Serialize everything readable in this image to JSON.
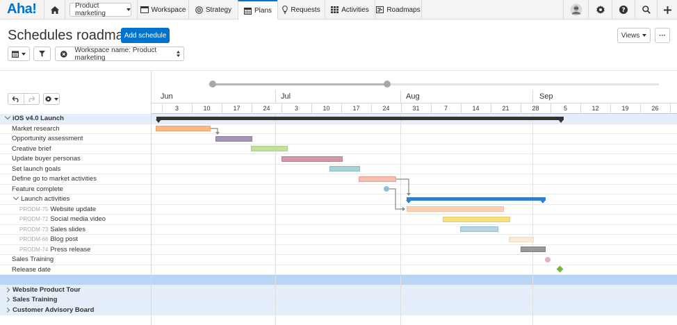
{
  "app": {
    "logo": "Aha!",
    "workspace_select": "Product marketing",
    "nav": [
      {
        "label": "Workspace",
        "icon": "workspace-icon"
      },
      {
        "label": "Strategy",
        "icon": "strategy-icon"
      },
      {
        "label": "Plans",
        "icon": "plans-icon",
        "active": true
      },
      {
        "label": "Requests",
        "icon": "lightbulb-icon"
      },
      {
        "label": "Activities",
        "icon": "grid-icon"
      },
      {
        "label": "Roadmaps",
        "icon": "roadmap-icon"
      }
    ]
  },
  "header": {
    "title": "Schedules roadmap",
    "add_button": "Add schedule",
    "views_button": "Views",
    "more_button": "···",
    "filter_label": "Workspace name: Product marketing"
  },
  "timeline": {
    "months": [
      "Jun",
      "Jul",
      "Aug",
      "Sep"
    ],
    "weeks": [
      "3",
      "10",
      "17",
      "24",
      "3",
      "10",
      "17",
      "24",
      "31",
      "7",
      "14",
      "21",
      "28",
      "5",
      "12",
      "19",
      "26"
    ]
  },
  "rows": [
    {
      "type": "group-open",
      "label": "iOS v4.0 Launch"
    },
    {
      "type": "item",
      "label": "Market research"
    },
    {
      "type": "item",
      "label": "Opportunity assessment"
    },
    {
      "type": "item",
      "label": "Creative brief"
    },
    {
      "type": "item",
      "label": "Update buyer personas"
    },
    {
      "type": "item",
      "label": "Set launch goals"
    },
    {
      "type": "item",
      "label": "Define go to market activities"
    },
    {
      "type": "item",
      "label": "Feature complete"
    },
    {
      "type": "subgroup",
      "label": "Launch activities"
    },
    {
      "type": "sub",
      "key": "PRODM-75",
      "label": "Website update"
    },
    {
      "type": "sub",
      "key": "PRODM-72",
      "label": "Social media video"
    },
    {
      "type": "sub",
      "key": "PRODM-73",
      "label": "Sales slides"
    },
    {
      "type": "sub",
      "key": "PRODM-68",
      "label": "Blog post"
    },
    {
      "type": "sub",
      "key": "PRODM-74",
      "label": "Press release"
    },
    {
      "type": "item",
      "label": "Sales Training"
    },
    {
      "type": "item",
      "label": "Release date"
    },
    {
      "type": "selected",
      "label": ""
    },
    {
      "type": "group-closed",
      "label": "Website Product Tour"
    },
    {
      "type": "group-closed",
      "label": "Sales Training"
    },
    {
      "type": "group-closed",
      "label": "Customer Advisory Board"
    }
  ],
  "colors": {
    "accent": "#0073cf",
    "group_bg": "#e4effb",
    "selected_bg": "#b7d6f6",
    "market_research": "#fbb98a",
    "opportunity": "#a596b4",
    "creative_brief": "#bfe19a",
    "personas": "#d19aa6",
    "launch_goals": "#a6d4d4",
    "gtm": "#f8bcb0",
    "website_update": "#fbd1b5",
    "social_video": "#f7df84",
    "sales_slides": "#b5d5e6",
    "blog_post": "#f5edd8",
    "press_release": "#9a9a9a",
    "milestone": "#7cb342"
  }
}
